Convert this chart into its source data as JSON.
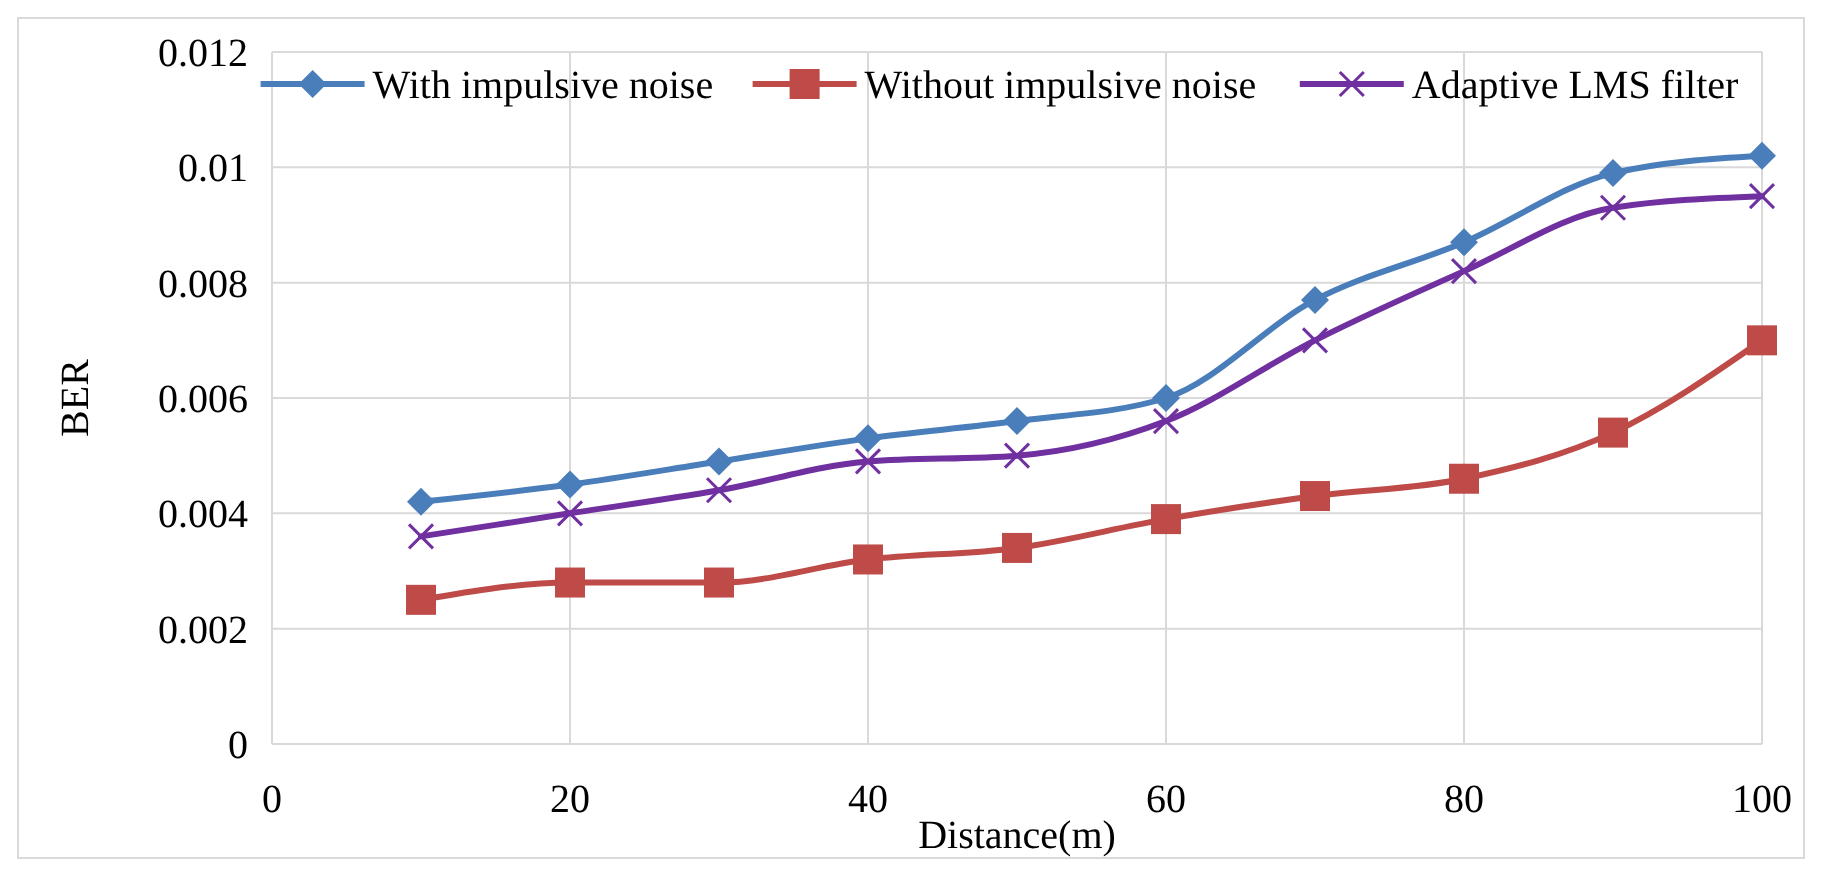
{
  "chart_data": {
    "type": "line",
    "xlabel": "Distance(m)",
    "ylabel": "BER",
    "x": [
      10,
      20,
      30,
      40,
      50,
      60,
      70,
      80,
      90,
      100
    ],
    "xlim": [
      0,
      100
    ],
    "xticks": [
      0,
      20,
      40,
      60,
      80,
      100
    ],
    "ylim": [
      0,
      0.012
    ],
    "yticks": [
      0,
      0.002,
      0.004,
      0.006,
      0.008,
      0.01,
      0.012
    ],
    "grid": true,
    "legend": "top",
    "series": [
      {
        "name": "With impulsive noise",
        "color": "#4a7ebb",
        "marker": "diamond",
        "values": [
          0.0042,
          0.0045,
          0.0049,
          0.0053,
          0.0056,
          0.006,
          0.0077,
          0.0087,
          0.0099,
          0.0102
        ]
      },
      {
        "name": "Without impulsive noise",
        "color": "#be4b48",
        "marker": "square",
        "values": [
          0.0025,
          0.0028,
          0.0028,
          0.0032,
          0.0034,
          0.0039,
          0.0043,
          0.0046,
          0.0054,
          0.007
        ]
      },
      {
        "name": "Adaptive LMS filter",
        "color": "#7030a0",
        "marker": "cross",
        "values": [
          0.0036,
          0.004,
          0.0044,
          0.0049,
          0.005,
          0.0056,
          0.007,
          0.0082,
          0.0093,
          0.0095
        ]
      }
    ]
  }
}
